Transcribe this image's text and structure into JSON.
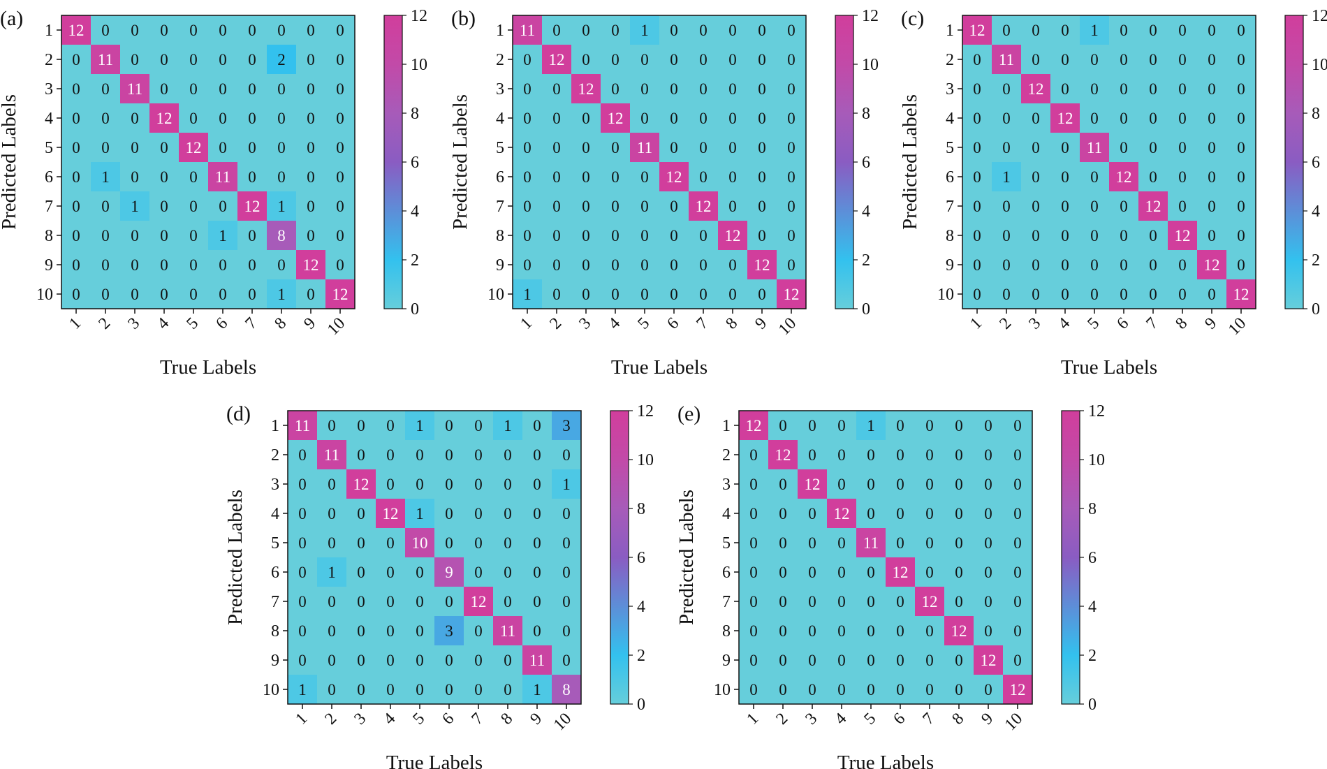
{
  "chart_data": [
    {
      "type": "heatmap",
      "panel_label": "(a)",
      "xlabel": "True Labels",
      "ylabel": "Predicted Labels",
      "row_labels": [
        "1",
        "2",
        "3",
        "4",
        "5",
        "6",
        "7",
        "8",
        "9",
        "10"
      ],
      "col_labels": [
        "1",
        "2",
        "3",
        "4",
        "5",
        "6",
        "7",
        "8",
        "9",
        "10"
      ],
      "colorbar_ticks": [
        "0",
        "2",
        "4",
        "6",
        "8",
        "10",
        "12"
      ],
      "vmin": 0,
      "vmax": 12,
      "matrix": [
        [
          12,
          0,
          0,
          0,
          0,
          0,
          0,
          0,
          0,
          0
        ],
        [
          0,
          11,
          0,
          0,
          0,
          0,
          0,
          2,
          0,
          0
        ],
        [
          0,
          0,
          11,
          0,
          0,
          0,
          0,
          0,
          0,
          0
        ],
        [
          0,
          0,
          0,
          12,
          0,
          0,
          0,
          0,
          0,
          0
        ],
        [
          0,
          0,
          0,
          0,
          12,
          0,
          0,
          0,
          0,
          0
        ],
        [
          0,
          1,
          0,
          0,
          0,
          11,
          0,
          0,
          0,
          0
        ],
        [
          0,
          0,
          1,
          0,
          0,
          0,
          12,
          1,
          0,
          0
        ],
        [
          0,
          0,
          0,
          0,
          0,
          1,
          0,
          8,
          0,
          0
        ],
        [
          0,
          0,
          0,
          0,
          0,
          0,
          0,
          0,
          12,
          0
        ],
        [
          0,
          0,
          0,
          0,
          0,
          0,
          0,
          1,
          0,
          12
        ]
      ]
    },
    {
      "type": "heatmap",
      "panel_label": "(b)",
      "xlabel": "True Labels",
      "ylabel": "Predicted Labels",
      "row_labels": [
        "1",
        "2",
        "3",
        "4",
        "5",
        "6",
        "7",
        "8",
        "9",
        "10"
      ],
      "col_labels": [
        "1",
        "2",
        "3",
        "4",
        "5",
        "6",
        "7",
        "8",
        "9",
        "10"
      ],
      "colorbar_ticks": [
        "0",
        "2",
        "4",
        "6",
        "8",
        "10",
        "12"
      ],
      "vmin": 0,
      "vmax": 12,
      "matrix": [
        [
          11,
          0,
          0,
          0,
          1,
          0,
          0,
          0,
          0,
          0
        ],
        [
          0,
          12,
          0,
          0,
          0,
          0,
          0,
          0,
          0,
          0
        ],
        [
          0,
          0,
          12,
          0,
          0,
          0,
          0,
          0,
          0,
          0
        ],
        [
          0,
          0,
          0,
          12,
          0,
          0,
          0,
          0,
          0,
          0
        ],
        [
          0,
          0,
          0,
          0,
          11,
          0,
          0,
          0,
          0,
          0
        ],
        [
          0,
          0,
          0,
          0,
          0,
          12,
          0,
          0,
          0,
          0
        ],
        [
          0,
          0,
          0,
          0,
          0,
          0,
          12,
          0,
          0,
          0
        ],
        [
          0,
          0,
          0,
          0,
          0,
          0,
          0,
          12,
          0,
          0
        ],
        [
          0,
          0,
          0,
          0,
          0,
          0,
          0,
          0,
          12,
          0
        ],
        [
          1,
          0,
          0,
          0,
          0,
          0,
          0,
          0,
          0,
          12
        ]
      ]
    },
    {
      "type": "heatmap",
      "panel_label": "(c)",
      "xlabel": "True Labels",
      "ylabel": "Predicted Labels",
      "row_labels": [
        "1",
        "2",
        "3",
        "4",
        "5",
        "6",
        "7",
        "8",
        "9",
        "10"
      ],
      "col_labels": [
        "1",
        "2",
        "3",
        "4",
        "5",
        "6",
        "7",
        "8",
        "9",
        "10"
      ],
      "colorbar_ticks": [
        "0",
        "2",
        "4",
        "6",
        "8",
        "10",
        "12"
      ],
      "vmin": 0,
      "vmax": 12,
      "matrix": [
        [
          12,
          0,
          0,
          0,
          1,
          0,
          0,
          0,
          0,
          0
        ],
        [
          0,
          11,
          0,
          0,
          0,
          0,
          0,
          0,
          0,
          0
        ],
        [
          0,
          0,
          12,
          0,
          0,
          0,
          0,
          0,
          0,
          0
        ],
        [
          0,
          0,
          0,
          12,
          0,
          0,
          0,
          0,
          0,
          0
        ],
        [
          0,
          0,
          0,
          0,
          11,
          0,
          0,
          0,
          0,
          0
        ],
        [
          0,
          1,
          0,
          0,
          0,
          12,
          0,
          0,
          0,
          0
        ],
        [
          0,
          0,
          0,
          0,
          0,
          0,
          12,
          0,
          0,
          0
        ],
        [
          0,
          0,
          0,
          0,
          0,
          0,
          0,
          12,
          0,
          0
        ],
        [
          0,
          0,
          0,
          0,
          0,
          0,
          0,
          0,
          12,
          0
        ],
        [
          0,
          0,
          0,
          0,
          0,
          0,
          0,
          0,
          0,
          12
        ]
      ]
    },
    {
      "type": "heatmap",
      "panel_label": "(d)",
      "xlabel": "True Labels",
      "ylabel": "Predicted Labels",
      "row_labels": [
        "1",
        "2",
        "3",
        "4",
        "5",
        "6",
        "7",
        "8",
        "9",
        "10"
      ],
      "col_labels": [
        "1",
        "2",
        "3",
        "4",
        "5",
        "6",
        "7",
        "8",
        "9",
        "10"
      ],
      "colorbar_ticks": [
        "0",
        "2",
        "4",
        "6",
        "8",
        "10",
        "12"
      ],
      "vmin": 0,
      "vmax": 12,
      "matrix": [
        [
          11,
          0,
          0,
          0,
          1,
          0,
          0,
          1,
          0,
          3
        ],
        [
          0,
          11,
          0,
          0,
          0,
          0,
          0,
          0,
          0,
          0
        ],
        [
          0,
          0,
          12,
          0,
          0,
          0,
          0,
          0,
          0,
          1
        ],
        [
          0,
          0,
          0,
          12,
          1,
          0,
          0,
          0,
          0,
          0
        ],
        [
          0,
          0,
          0,
          0,
          10,
          0,
          0,
          0,
          0,
          0
        ],
        [
          0,
          1,
          0,
          0,
          0,
          9,
          0,
          0,
          0,
          0
        ],
        [
          0,
          0,
          0,
          0,
          0,
          0,
          12,
          0,
          0,
          0
        ],
        [
          0,
          0,
          0,
          0,
          0,
          3,
          0,
          11,
          0,
          0
        ],
        [
          0,
          0,
          0,
          0,
          0,
          0,
          0,
          0,
          11,
          0
        ],
        [
          1,
          0,
          0,
          0,
          0,
          0,
          0,
          0,
          1,
          8
        ]
      ]
    },
    {
      "type": "heatmap",
      "panel_label": "(e)",
      "xlabel": "True Labels",
      "ylabel": "Predicted Labels",
      "row_labels": [
        "1",
        "2",
        "3",
        "4",
        "5",
        "6",
        "7",
        "8",
        "9",
        "10"
      ],
      "col_labels": [
        "1",
        "2",
        "3",
        "4",
        "5",
        "6",
        "7",
        "8",
        "9",
        "10"
      ],
      "colorbar_ticks": [
        "0",
        "2",
        "4",
        "6",
        "8",
        "10",
        "12"
      ],
      "vmin": 0,
      "vmax": 12,
      "matrix": [
        [
          12,
          0,
          0,
          0,
          1,
          0,
          0,
          0,
          0,
          0
        ],
        [
          0,
          12,
          0,
          0,
          0,
          0,
          0,
          0,
          0,
          0
        ],
        [
          0,
          0,
          12,
          0,
          0,
          0,
          0,
          0,
          0,
          0
        ],
        [
          0,
          0,
          0,
          12,
          0,
          0,
          0,
          0,
          0,
          0
        ],
        [
          0,
          0,
          0,
          0,
          11,
          0,
          0,
          0,
          0,
          0
        ],
        [
          0,
          0,
          0,
          0,
          0,
          12,
          0,
          0,
          0,
          0
        ],
        [
          0,
          0,
          0,
          0,
          0,
          0,
          12,
          0,
          0,
          0
        ],
        [
          0,
          0,
          0,
          0,
          0,
          0,
          0,
          12,
          0,
          0
        ],
        [
          0,
          0,
          0,
          0,
          0,
          0,
          0,
          0,
          12,
          0
        ],
        [
          0,
          0,
          0,
          0,
          0,
          0,
          0,
          0,
          0,
          12
        ]
      ]
    }
  ],
  "colors": {
    "colormap": [
      "#66cedb",
      "#33c1ee",
      "#5d8ed8",
      "#8a5cc2",
      "#a75bb9",
      "#c24aa8",
      "#d13e9c"
    ],
    "frame": "#111111"
  }
}
